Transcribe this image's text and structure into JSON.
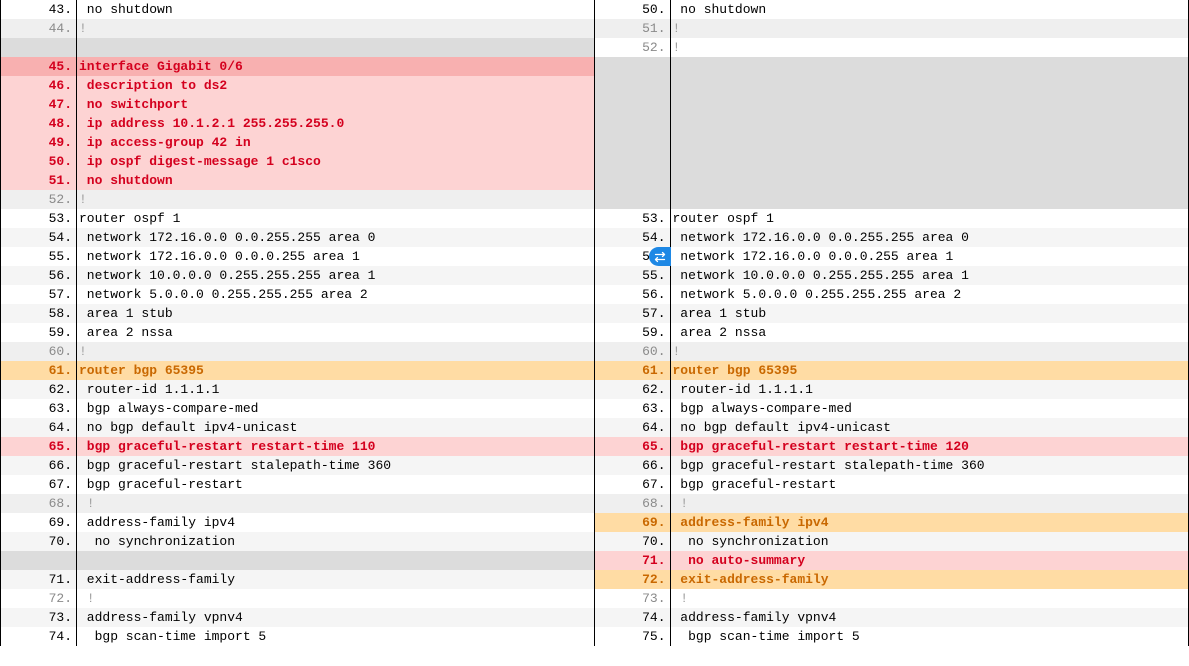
{
  "colors": {
    "text_default": "#000000",
    "text_dim": "#9e9e9e",
    "text_red": "#d4001e",
    "text_orange": "#c96800",
    "bg_alt": "#f5f5f5",
    "bg_alt_dim": "#efefef",
    "bg_del": "#fdd3d3",
    "bg_del_hdr": "#f8b0b0",
    "bg_mod": "#ffdca4",
    "bg_skip": "#dcdcdc",
    "marker_bg": "#1e88e5",
    "border": "#000000"
  },
  "left": [
    {
      "ln": "43.",
      "txt": " no shutdown",
      "row": "",
      "lnc": ""
    },
    {
      "ln": "44.",
      "txt": "!",
      "row": "bg-alt-dim",
      "lnc": "ln-gray"
    },
    {
      "ln": "",
      "txt": "",
      "row": "bg-skip",
      "lnc": ""
    },
    {
      "ln": "45.",
      "txt": "interface Gigabit 0/6",
      "row": "bg-del-hdr",
      "lnc": "ln-red"
    },
    {
      "ln": "46.",
      "txt": " description to ds2",
      "row": "bg-del",
      "lnc": "ln-red"
    },
    {
      "ln": "47.",
      "txt": " no switchport",
      "row": "bg-del",
      "lnc": "ln-red"
    },
    {
      "ln": "48.",
      "txt": " ip address 10.1.2.1 255.255.255.0",
      "row": "bg-del",
      "lnc": "ln-red"
    },
    {
      "ln": "49.",
      "txt": " ip access-group 42 in",
      "row": "bg-del",
      "lnc": "ln-red"
    },
    {
      "ln": "50.",
      "txt": " ip ospf digest-message 1 c1sco",
      "row": "bg-del",
      "lnc": "ln-red"
    },
    {
      "ln": "51.",
      "txt": " no shutdown",
      "row": "bg-del",
      "lnc": "ln-red"
    },
    {
      "ln": "52.",
      "txt": "!",
      "row": "bg-alt-dim",
      "lnc": "ln-gray"
    },
    {
      "ln": "53.",
      "txt": "router ospf 1",
      "row": "",
      "lnc": ""
    },
    {
      "ln": "54.",
      "txt": " network 172.16.0.0 0.0.255.255 area 0",
      "row": "bg-alt",
      "lnc": ""
    },
    {
      "ln": "55.",
      "txt": " network 172.16.0.0 0.0.0.255 area 1",
      "row": "",
      "lnc": ""
    },
    {
      "ln": "56.",
      "txt": " network 10.0.0.0 0.255.255.255 area 1",
      "row": "bg-alt",
      "lnc": ""
    },
    {
      "ln": "57.",
      "txt": " network 5.0.0.0 0.255.255.255 area 2",
      "row": "",
      "lnc": ""
    },
    {
      "ln": "58.",
      "txt": " area 1 stub",
      "row": "bg-alt",
      "lnc": ""
    },
    {
      "ln": "59.",
      "txt": " area 2 nssa",
      "row": "",
      "lnc": ""
    },
    {
      "ln": "60.",
      "txt": "!",
      "row": "bg-alt-dim",
      "lnc": "ln-gray"
    },
    {
      "ln": "61.",
      "txt": "router bgp 65395",
      "row": "bg-mod",
      "lnc": "ln-orange"
    },
    {
      "ln": "62.",
      "txt": " router-id 1.1.1.1",
      "row": "bg-alt",
      "lnc": ""
    },
    {
      "ln": "63.",
      "txt": " bgp always-compare-med",
      "row": "",
      "lnc": ""
    },
    {
      "ln": "64.",
      "txt": " no bgp default ipv4-unicast",
      "row": "bg-alt",
      "lnc": ""
    },
    {
      "ln": "65.",
      "txt": " bgp graceful-restart restart-time 110",
      "row": "bg-del",
      "lnc": "ln-red"
    },
    {
      "ln": "66.",
      "txt": " bgp graceful-restart stalepath-time 360",
      "row": "bg-alt",
      "lnc": ""
    },
    {
      "ln": "67.",
      "txt": " bgp graceful-restart",
      "row": "",
      "lnc": ""
    },
    {
      "ln": "68.",
      "txt": " !",
      "row": "bg-alt-dim",
      "lnc": "ln-gray"
    },
    {
      "ln": "69.",
      "txt": " address-family ipv4",
      "row": "",
      "lnc": ""
    },
    {
      "ln": "70.",
      "txt": "  no synchronization",
      "row": "bg-alt",
      "lnc": ""
    },
    {
      "ln": "",
      "txt": "",
      "row": "bg-skip",
      "lnc": ""
    },
    {
      "ln": "71.",
      "txt": " exit-address-family",
      "row": "bg-alt",
      "lnc": ""
    },
    {
      "ln": "72.",
      "txt": " !",
      "row": "bg-dim",
      "lnc": "ln-gray"
    },
    {
      "ln": "73.",
      "txt": " address-family vpnv4",
      "row": "bg-alt",
      "lnc": ""
    },
    {
      "ln": "74.",
      "txt": "  bgp scan-time import 5",
      "row": "",
      "lnc": ""
    }
  ],
  "right": [
    {
      "ln": "50.",
      "txt": " no shutdown",
      "row": "",
      "lnc": ""
    },
    {
      "ln": "51.",
      "txt": "!",
      "row": "bg-alt-dim",
      "lnc": "ln-gray"
    },
    {
      "ln": "52.",
      "txt": "!",
      "row": "bg-dim",
      "lnc": "ln-gray"
    },
    {
      "ln": "",
      "txt": "",
      "row": "bg-skip",
      "lnc": ""
    },
    {
      "ln": "",
      "txt": "",
      "row": "bg-skip",
      "lnc": ""
    },
    {
      "ln": "",
      "txt": "",
      "row": "bg-skip",
      "lnc": ""
    },
    {
      "ln": "",
      "txt": "",
      "row": "bg-skip",
      "lnc": ""
    },
    {
      "ln": "",
      "txt": "",
      "row": "bg-skip",
      "lnc": ""
    },
    {
      "ln": "",
      "txt": "",
      "row": "bg-skip",
      "lnc": ""
    },
    {
      "ln": "",
      "txt": "",
      "row": "bg-skip",
      "lnc": ""
    },
    {
      "ln": "",
      "txt": "",
      "row": "bg-skip",
      "lnc": ""
    },
    {
      "ln": "53.",
      "txt": "router ospf 1",
      "row": "",
      "lnc": ""
    },
    {
      "ln": "54.",
      "txt": " network 172.16.0.0 0.0.255.255 area 0",
      "row": "bg-alt",
      "lnc": ""
    },
    {
      "ln": "58.",
      "txt": " network 172.16.0.0 0.0.0.255 area 1",
      "row": "",
      "lnc": "",
      "marker": true
    },
    {
      "ln": "55.",
      "txt": " network 10.0.0.0 0.255.255.255 area 1",
      "row": "bg-alt",
      "lnc": ""
    },
    {
      "ln": "56.",
      "txt": " network 5.0.0.0 0.255.255.255 area 2",
      "row": "",
      "lnc": ""
    },
    {
      "ln": "57.",
      "txt": " area 1 stub",
      "row": "bg-alt",
      "lnc": ""
    },
    {
      "ln": "59.",
      "txt": " area 2 nssa",
      "row": "",
      "lnc": ""
    },
    {
      "ln": "60.",
      "txt": "!",
      "row": "bg-alt-dim",
      "lnc": "ln-gray"
    },
    {
      "ln": "61.",
      "txt": "router bgp 65395",
      "row": "bg-mod",
      "lnc": "ln-orange"
    },
    {
      "ln": "62.",
      "txt": " router-id 1.1.1.1",
      "row": "bg-alt",
      "lnc": ""
    },
    {
      "ln": "63.",
      "txt": " bgp always-compare-med",
      "row": "",
      "lnc": ""
    },
    {
      "ln": "64.",
      "txt": " no bgp default ipv4-unicast",
      "row": "bg-alt",
      "lnc": ""
    },
    {
      "ln": "65.",
      "txt": " bgp graceful-restart restart-time 120",
      "row": "bg-del",
      "lnc": "ln-red"
    },
    {
      "ln": "66.",
      "txt": " bgp graceful-restart stalepath-time 360",
      "row": "bg-alt",
      "lnc": ""
    },
    {
      "ln": "67.",
      "txt": " bgp graceful-restart",
      "row": "",
      "lnc": ""
    },
    {
      "ln": "68.",
      "txt": " !",
      "row": "bg-alt-dim",
      "lnc": "ln-gray"
    },
    {
      "ln": "69.",
      "txt": " address-family ipv4",
      "row": "bg-mod",
      "lnc": "ln-orange"
    },
    {
      "ln": "70.",
      "txt": "  no synchronization",
      "row": "bg-alt",
      "lnc": ""
    },
    {
      "ln": "71.",
      "txt": "  no auto-summary",
      "row": "bg-del",
      "lnc": "ln-red"
    },
    {
      "ln": "72.",
      "txt": " exit-address-family",
      "row": "bg-mod",
      "lnc": "ln-orange"
    },
    {
      "ln": "73.",
      "txt": " !",
      "row": "bg-dim",
      "lnc": "ln-gray"
    },
    {
      "ln": "74.",
      "txt": " address-family vpnv4",
      "row": "bg-alt",
      "lnc": ""
    },
    {
      "ln": "75.",
      "txt": "  bgp scan-time import 5",
      "row": "",
      "lnc": ""
    }
  ]
}
